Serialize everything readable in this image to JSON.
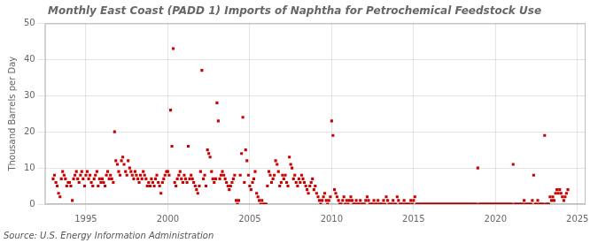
{
  "chart_data": {
    "type": "scatter",
    "title": "Monthly East Coast (PADD 1) Imports of Naphtha for Petrochemical Feedstock Use",
    "ylabel": "Thousand Barrels per Day",
    "annotations": [
      "Source: U.S. Energy Information Administration"
    ],
    "color": "#cc0000",
    "marker": "square",
    "grid": true,
    "xlim": [
      1992.5,
      2025.5
    ],
    "ylim": [
      0,
      50
    ],
    "xticks": [
      1995,
      2000,
      2005,
      2010,
      2015,
      2020,
      2025
    ],
    "yticks": [
      0,
      10,
      20,
      30,
      40,
      50
    ],
    "x": [
      1993.0,
      1993.08,
      1993.17,
      1993.25,
      1993.33,
      1993.42,
      1993.5,
      1993.58,
      1993.67,
      1993.75,
      1993.83,
      1993.92,
      1994.0,
      1994.08,
      1994.17,
      1994.25,
      1994.33,
      1994.42,
      1994.5,
      1994.58,
      1994.67,
      1994.75,
      1994.83,
      1994.92,
      1995.0,
      1995.08,
      1995.17,
      1995.25,
      1995.33,
      1995.42,
      1995.5,
      1995.58,
      1995.67,
      1995.75,
      1995.83,
      1995.92,
      1996.0,
      1996.08,
      1996.17,
      1996.25,
      1996.33,
      1996.42,
      1996.5,
      1996.58,
      1996.67,
      1996.75,
      1996.83,
      1996.92,
      1997.0,
      1997.08,
      1997.17,
      1997.25,
      1997.33,
      1997.42,
      1997.5,
      1997.58,
      1997.67,
      1997.75,
      1997.83,
      1997.92,
      1998.0,
      1998.08,
      1998.17,
      1998.25,
      1998.33,
      1998.42,
      1998.5,
      1998.58,
      1998.67,
      1998.75,
      1998.83,
      1998.92,
      1999.0,
      1999.08,
      1999.17,
      1999.25,
      1999.33,
      1999.42,
      1999.5,
      1999.58,
      1999.67,
      1999.75,
      1999.83,
      1999.92,
      2000.0,
      2000.08,
      2000.17,
      2000.25,
      2000.33,
      2000.42,
      2000.5,
      2000.58,
      2000.67,
      2000.75,
      2000.83,
      2000.92,
      2001.0,
      2001.08,
      2001.17,
      2001.25,
      2001.33,
      2001.42,
      2001.5,
      2001.58,
      2001.67,
      2001.75,
      2001.83,
      2001.92,
      2002.0,
      2002.08,
      2002.17,
      2002.25,
      2002.33,
      2002.42,
      2002.5,
      2002.58,
      2002.67,
      2002.75,
      2002.83,
      2002.92,
      2003.0,
      2003.08,
      2003.17,
      2003.25,
      2003.33,
      2003.42,
      2003.5,
      2003.58,
      2003.67,
      2003.75,
      2003.83,
      2003.92,
      2004.0,
      2004.08,
      2004.17,
      2004.25,
      2004.33,
      2004.42,
      2004.5,
      2004.58,
      2004.67,
      2004.75,
      2004.83,
      2004.92,
      2005.0,
      2005.08,
      2005.17,
      2005.25,
      2005.33,
      2005.42,
      2005.5,
      2005.58,
      2005.67,
      2005.75,
      2005.83,
      2005.92,
      2006.0,
      2006.08,
      2006.17,
      2006.25,
      2006.33,
      2006.42,
      2006.5,
      2006.58,
      2006.67,
      2006.75,
      2006.83,
      2006.92,
      2007.0,
      2007.08,
      2007.17,
      2007.25,
      2007.33,
      2007.42,
      2007.5,
      2007.58,
      2007.67,
      2007.75,
      2007.83,
      2007.92,
      2008.0,
      2008.08,
      2008.17,
      2008.25,
      2008.33,
      2008.42,
      2008.5,
      2008.58,
      2008.67,
      2008.75,
      2008.83,
      2008.92,
      2009.0,
      2009.08,
      2009.17,
      2009.25,
      2009.33,
      2009.42,
      2009.5,
      2009.58,
      2009.67,
      2009.75,
      2009.83,
      2009.92,
      2010.0,
      2010.08,
      2010.17,
      2010.25,
      2010.33,
      2010.42,
      2010.5,
      2010.58,
      2010.67,
      2010.75,
      2010.83,
      2010.92,
      2011.0,
      2011.08,
      2011.17,
      2011.25,
      2011.33,
      2011.42,
      2011.5,
      2011.58,
      2011.67,
      2011.75,
      2011.83,
      2011.92,
      2012.0,
      2012.08,
      2012.17,
      2012.25,
      2012.33,
      2012.42,
      2012.5,
      2012.58,
      2012.67,
      2012.75,
      2012.83,
      2012.92,
      2013.0,
      2013.08,
      2013.17,
      2013.25,
      2013.33,
      2013.42,
      2013.5,
      2013.58,
      2013.67,
      2013.75,
      2013.83,
      2013.92,
      2014.0,
      2014.08,
      2014.17,
      2014.25,
      2014.33,
      2014.42,
      2014.5,
      2014.58,
      2014.67,
      2014.75,
      2014.83,
      2014.92,
      2015.0,
      2015.08,
      2015.17,
      2015.25,
      2015.33,
      2015.42,
      2015.5,
      2015.58,
      2015.67,
      2015.75,
      2015.83,
      2015.92,
      2016.0,
      2016.08,
      2016.17,
      2016.25,
      2016.33,
      2016.42,
      2016.5,
      2016.58,
      2016.67,
      2016.75,
      2016.83,
      2016.92,
      2017.0,
      2017.08,
      2017.17,
      2017.25,
      2017.33,
      2017.42,
      2017.5,
      2017.58,
      2017.67,
      2017.75,
      2017.83,
      2017.92,
      2018.0,
      2018.08,
      2018.17,
      2018.25,
      2018.33,
      2018.42,
      2018.5,
      2018.58,
      2018.67,
      2018.75,
      2018.83,
      2018.92,
      2019.0,
      2019.08,
      2019.17,
      2019.25,
      2019.33,
      2019.42,
      2019.5,
      2019.58,
      2019.67,
      2019.75,
      2019.83,
      2019.92,
      2020.0,
      2020.08,
      2020.17,
      2020.25,
      2020.33,
      2020.42,
      2020.5,
      2020.58,
      2020.67,
      2020.75,
      2020.83,
      2020.92,
      2021.0,
      2021.08,
      2021.17,
      2021.25,
      2021.33,
      2021.42,
      2021.5,
      2021.58,
      2021.67,
      2021.75,
      2021.83,
      2021.92,
      2022.0,
      2022.08,
      2022.17,
      2022.25,
      2022.33,
      2022.42,
      2022.5,
      2022.58,
      2022.67,
      2022.75,
      2022.83,
      2022.92,
      2023.0,
      2023.08,
      2023.17,
      2023.25,
      2023.33,
      2023.42,
      2023.5,
      2023.58,
      2023.67,
      2023.75,
      2023.83,
      2023.92,
      2024.0,
      2024.08,
      2024.17,
      2024.25,
      2024.33,
      2024.42
    ],
    "values": [
      7,
      8,
      6,
      5,
      3,
      2,
      7,
      9,
      8,
      7,
      5,
      6,
      6,
      5,
      1,
      7,
      8,
      9,
      7,
      6,
      8,
      9,
      7,
      5,
      8,
      9,
      7,
      8,
      6,
      5,
      7,
      8,
      9,
      5,
      7,
      6,
      7,
      6,
      5,
      8,
      9,
      7,
      8,
      7,
      6,
      20,
      12,
      11,
      9,
      8,
      12,
      13,
      11,
      9,
      8,
      12,
      10,
      9,
      8,
      7,
      9,
      8,
      7,
      6,
      8,
      7,
      9,
      8,
      7,
      5,
      6,
      5,
      7,
      6,
      5,
      7,
      8,
      6,
      5,
      3,
      6,
      7,
      8,
      9,
      9,
      8,
      26,
      16,
      43,
      6,
      5,
      7,
      8,
      9,
      7,
      6,
      8,
      7,
      6,
      16,
      7,
      8,
      7,
      6,
      5,
      4,
      3,
      5,
      9,
      37,
      7,
      8,
      5,
      15,
      14,
      13,
      9,
      7,
      6,
      7,
      28,
      23,
      7,
      8,
      9,
      8,
      7,
      6,
      5,
      4,
      5,
      6,
      7,
      8,
      1,
      0,
      1,
      8,
      14,
      24,
      6,
      15,
      12,
      8,
      5,
      4,
      6,
      7,
      9,
      3,
      2,
      1,
      0,
      1,
      0,
      0,
      0,
      5,
      9,
      8,
      6,
      7,
      8,
      12,
      11,
      9,
      5,
      6,
      8,
      7,
      8,
      6,
      5,
      13,
      11,
      10,
      7,
      8,
      6,
      5,
      7,
      6,
      8,
      7,
      6,
      5,
      4,
      3,
      5,
      6,
      7,
      4,
      5,
      3,
      2,
      1,
      0,
      1,
      2,
      3,
      1,
      0,
      1,
      2,
      23,
      19,
      4,
      3,
      2,
      1,
      0,
      0,
      1,
      2,
      0,
      1,
      0,
      1,
      2,
      1,
      0,
      0,
      1,
      0,
      0,
      1,
      0,
      0,
      0,
      1,
      2,
      1,
      0,
      0,
      0,
      1,
      0,
      0,
      1,
      0,
      0,
      0,
      1,
      0,
      2,
      1,
      0,
      0,
      0,
      1,
      0,
      0,
      2,
      1,
      0,
      0,
      0,
      1,
      0,
      0,
      0,
      0,
      1,
      0,
      1,
      2,
      0,
      0,
      0,
      0,
      0,
      0,
      0,
      0,
      0,
      0,
      0,
      0,
      0,
      0,
      0,
      0,
      0,
      0,
      0,
      0,
      0,
      0,
      0,
      0,
      0,
      0,
      0,
      0,
      0,
      0,
      0,
      0,
      0,
      0,
      0,
      0,
      0,
      0,
      0,
      0,
      0,
      0,
      0,
      0,
      0,
      10,
      0,
      0,
      0,
      0,
      0,
      0,
      0,
      0,
      0,
      0,
      0,
      0,
      0,
      0,
      0,
      0,
      0,
      0,
      0,
      0,
      0,
      0,
      0,
      0,
      0,
      11,
      0,
      0,
      0,
      0,
      0,
      0,
      0,
      1,
      0,
      0,
      0,
      0,
      0,
      1,
      8,
      0,
      0,
      1,
      0,
      0,
      0,
      0,
      19,
      0,
      0,
      0,
      2,
      1,
      2,
      1,
      3,
      4,
      3,
      4,
      3,
      2,
      1,
      2,
      3,
      4
    ]
  }
}
